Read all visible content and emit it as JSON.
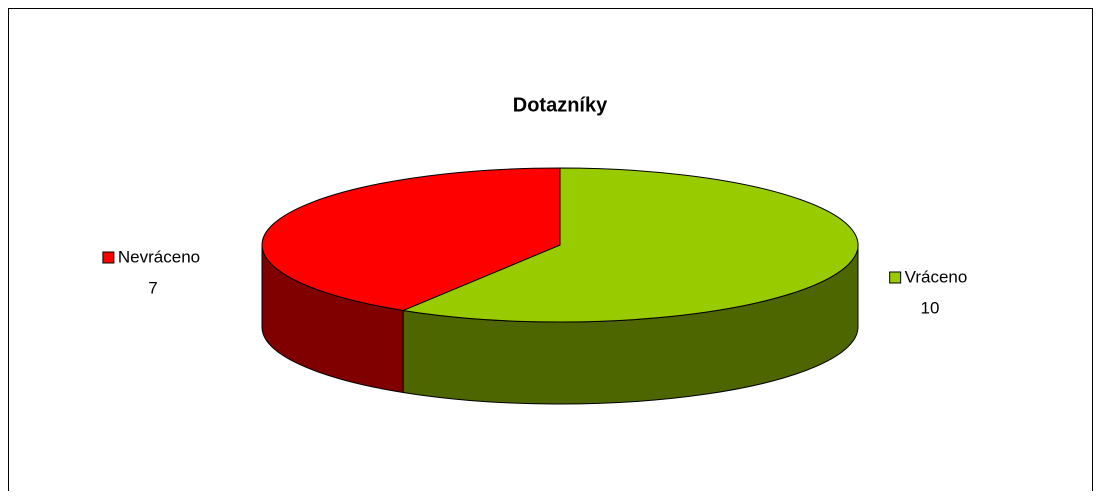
{
  "chart_data": {
    "type": "pie",
    "title": "Dotazníky",
    "categories": [
      "Vráceno",
      "Nevráceno"
    ],
    "values": [
      10,
      7
    ],
    "colors": [
      "#99cc00",
      "#ff0000"
    ],
    "side_colors": [
      "#4d6600",
      "#800000"
    ]
  }
}
